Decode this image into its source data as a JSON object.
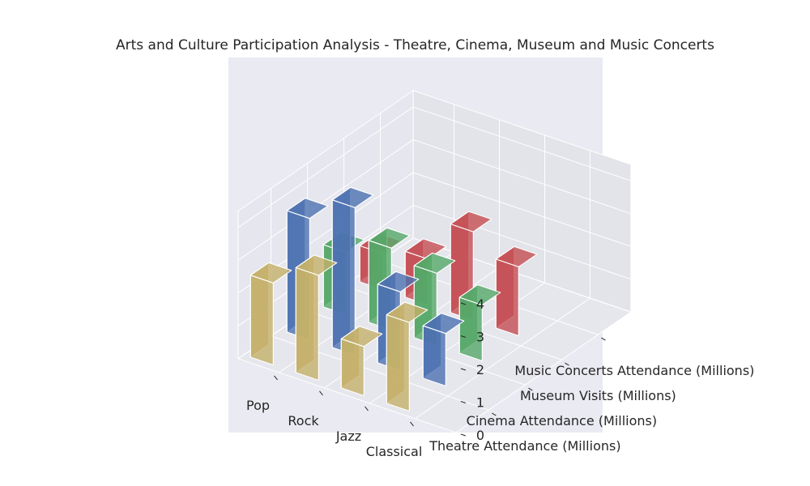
{
  "chart_data": {
    "type": "bar3d",
    "title": "Arts and Culture Participation Analysis - Theatre, Cinema, Museum and Music Concerts",
    "categories": [
      "Pop",
      "Rock",
      "Jazz",
      "Classical"
    ],
    "series": [
      {
        "name": "Theatre Attendance (Millions)",
        "values": [
          2.5,
          3.2,
          1.5,
          2.7
        ],
        "color": "#c4b069"
      },
      {
        "name": "Cinema Attendance (Millions)",
        "values": [
          3.7,
          4.5,
          2.4,
          1.6
        ],
        "color": "#4c72b0"
      },
      {
        "name": "Museum Visits (Millions)",
        "values": [
          1.9,
          2.5,
          2.2,
          1.7
        ],
        "color": "#55a868"
      },
      {
        "name": "Music Concerts Attendance (Millions)",
        "values": [
          1.1,
          1.4,
          2.7,
          2.1
        ],
        "color": "#c44e52"
      }
    ],
    "zticks": [
      0,
      1,
      2,
      3,
      4
    ],
    "zlim": [
      0,
      4.5
    ],
    "background": "#eaeaf2",
    "grid": true
  }
}
